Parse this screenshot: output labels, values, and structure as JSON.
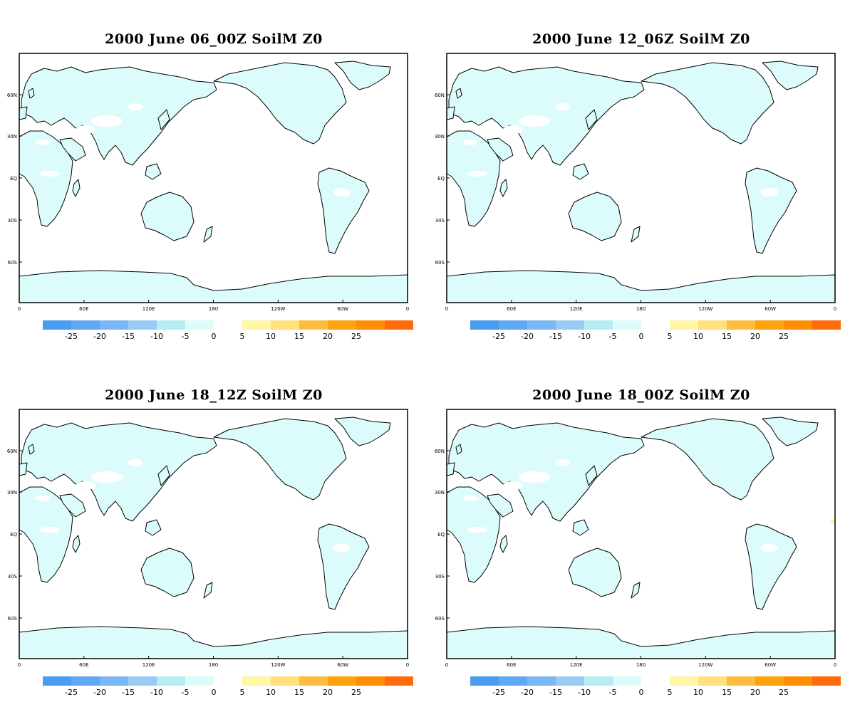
{
  "panels": [
    {
      "title": "2000 June 06_00Z SoilM Z0",
      "extra_spot": false
    },
    {
      "title": "2000 June 12_06Z SoilM Z0",
      "extra_spot": false
    },
    {
      "title": "2000 June 18_12Z SoilM Z0",
      "extra_spot": false
    },
    {
      "title": "2000 June 18_00Z SoilM Z0",
      "extra_spot": true
    }
  ],
  "lat_ticks": [
    "60N",
    "30N",
    "EQ",
    "30S",
    "60S"
  ],
  "lon_ticks": [
    "0",
    "60E",
    "120E",
    "180",
    "120W",
    "60W",
    "0"
  ],
  "colorbar": {
    "negative": {
      "colors": [
        "#4a9cf0",
        "#5fa9f3",
        "#7ab8f5",
        "#9ccaf7",
        "#b8ecf4",
        "#dcfcfc"
      ],
      "labels": [
        "-25",
        "-20",
        "-15",
        "-10",
        "-5",
        "0"
      ]
    },
    "positive": {
      "colors": [
        "#fff6a6",
        "#ffe17e",
        "#ffbd3e",
        "#ffa20c",
        "#ff8e00",
        "#ff6a0a"
      ],
      "labels": [
        "5",
        "10",
        "15",
        "20",
        "25"
      ]
    }
  },
  "colors": {
    "land": "#dcfcfc",
    "ocean": "#ffffff",
    "coast": "#000000"
  }
}
